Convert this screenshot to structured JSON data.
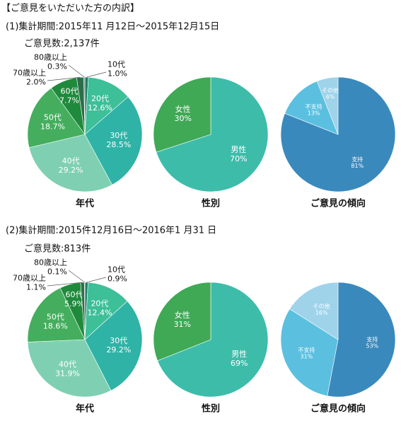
{
  "title": "【ご意見をいただいた方の内訳】",
  "sections": [
    {
      "period": "(1)集計期間:2015年11 月12日～2015年12月15日",
      "count": "ご意見数:2,137件"
    },
    {
      "period": "(2)集計期間:2015件12月16日～2016年1 月31 日",
      "count": "ご意見数:813件"
    }
  ],
  "chart_data": [
    {
      "type": "pie",
      "title": "年代",
      "categories": [
        "10代",
        "20代",
        "30代",
        "40代",
        "50代",
        "60代",
        "70歳以上",
        "80歳以上"
      ],
      "values": [
        1.0,
        12.6,
        28.5,
        29.2,
        18.7,
        7.7,
        2.0,
        0.3
      ],
      "value_labels": [
        "1.0%",
        "12.6%",
        "28.5%",
        "29.2%",
        "18.7%",
        "7.7%",
        "2.0%",
        "0.3%"
      ],
      "colors": [
        "#1f7f6a",
        "#3dbf98",
        "#2fb3a6",
        "#7fd0b2",
        "#44ae5e",
        "#1f8a3c",
        "#2c6e4c",
        "#5b8b6a"
      ]
    },
    {
      "type": "pie",
      "title": "性別",
      "categories": [
        "男性",
        "女性"
      ],
      "values": [
        70,
        30
      ],
      "value_labels": [
        "70%",
        "30%"
      ],
      "colors": [
        "#3dbcaa",
        "#3fa956"
      ]
    },
    {
      "type": "pie",
      "title": "ご意見の傾向",
      "categories": [
        "支持",
        "不支持",
        "その他"
      ],
      "values": [
        81,
        13,
        6
      ],
      "value_labels": [
        "81%",
        "13%",
        "6%"
      ],
      "colors": [
        "#3a89bd",
        "#5bc0e0",
        "#9fd3ea"
      ]
    },
    {
      "type": "pie",
      "title": "年代",
      "categories": [
        "10代",
        "20代",
        "30代",
        "40代",
        "50代",
        "60代",
        "70歳以上",
        "80歳以上"
      ],
      "values": [
        0.9,
        12.4,
        29.2,
        31.9,
        18.6,
        5.9,
        1.1,
        0.1
      ],
      "value_labels": [
        "0.9%",
        "12.4%",
        "29.2%",
        "31.9%",
        "18.6%",
        "5.9%",
        "1.1%",
        "0.1%"
      ],
      "colors": [
        "#1f7f6a",
        "#3dbf98",
        "#2fb3a6",
        "#7fd0b2",
        "#44ae5e",
        "#1f8a3c",
        "#2c6e4c",
        "#5b8b6a"
      ]
    },
    {
      "type": "pie",
      "title": "性別",
      "categories": [
        "男性",
        "女性"
      ],
      "values": [
        69,
        31
      ],
      "value_labels": [
        "69%",
        "31%"
      ],
      "colors": [
        "#3dbcaa",
        "#3fa956"
      ]
    },
    {
      "type": "pie",
      "title": "ご意見の傾向",
      "categories": [
        "支持",
        "不支持",
        "その他"
      ],
      "values": [
        53,
        31,
        16
      ],
      "value_labels": [
        "53%",
        "31%",
        "16%"
      ],
      "colors": [
        "#3a89bd",
        "#5bc0e0",
        "#9fd3ea"
      ]
    }
  ]
}
